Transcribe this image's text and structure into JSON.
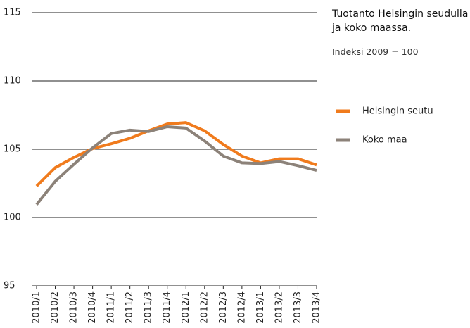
{
  "chart_data": {
    "type": "line",
    "title": "Tuotanto Helsingin seudulla ja koko maassa.",
    "subtitle": "Indeksi 2009 = 100",
    "categories": [
      "2010/1",
      "2010/2",
      "2010/3",
      "2010/4",
      "2011/1",
      "2011/2",
      "2011/3",
      "2011/4",
      "2012/1",
      "2012/2",
      "2012/3",
      "2012/4",
      "2013/1",
      "2013/2",
      "2013/3",
      "2013/4"
    ],
    "series": [
      {
        "name": "Helsingin seutu",
        "color": "#f07b1d",
        "values": [
          102.3,
          103.65,
          104.4,
          105.05,
          105.4,
          105.8,
          106.35,
          106.85,
          106.95,
          106.35,
          105.35,
          104.5,
          104.0,
          104.3,
          104.3,
          103.85
        ]
      },
      {
        "name": "Koko maa",
        "color": "#8c8279",
        "values": [
          100.95,
          102.65,
          103.9,
          105.1,
          106.15,
          106.4,
          106.3,
          106.65,
          106.55,
          105.6,
          104.5,
          104.0,
          103.95,
          104.1,
          103.8,
          103.45
        ]
      }
    ],
    "ylim": [
      95,
      115
    ],
    "yticks": [
      95,
      100,
      105,
      110,
      115
    ],
    "grid": true
  }
}
